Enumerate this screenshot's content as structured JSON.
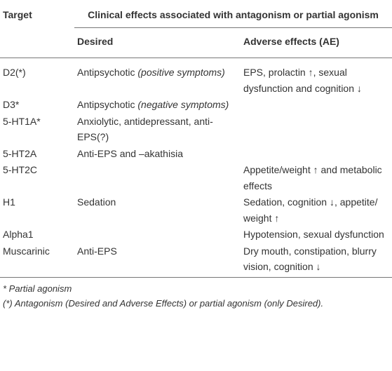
{
  "table": {
    "header": {
      "target": "Target",
      "clinical": "Clinical effects associated with antagonism or partial agonism",
      "desired": "Desired",
      "adverse": "Adverse effects (AE)"
    },
    "rows": [
      {
        "target": "D2(*)",
        "desired": "Antipsychotic",
        "desired_italic": "(positive symptoms)",
        "adverse": "EPS, prolactin ↑, sexual dysfunction and cognition ↓"
      },
      {
        "target": "D3*",
        "desired": "Antipsychotic",
        "desired_italic": "(negative symptoms)"
      },
      {
        "target": "5-HT1A*",
        "desired": "Anxiolytic, antidepressant, anti-EPS(?)"
      },
      {
        "target": "5-HT2A",
        "desired": "Anti-EPS and –akathisia"
      },
      {
        "target": "5-HT2C",
        "adverse": "Appetite/weight ↑ and metabolic effects"
      },
      {
        "target": "H1",
        "desired": "Sedation",
        "adverse": "Sedation, cognition ↓, appetite/ weight ↑"
      },
      {
        "target": "Alpha1",
        "adverse": "Hypotension, sexual dysfunction"
      },
      {
        "target": "Muscarinic",
        "desired": "Anti-EPS",
        "adverse": "Dry mouth, constipation, blurry vision, cognition ↓"
      }
    ]
  },
  "footnotes": [
    "* Partial agonism",
    "(*) Antagonism (Desired and Adverse Effects) or partial agonism (only Desired)."
  ]
}
